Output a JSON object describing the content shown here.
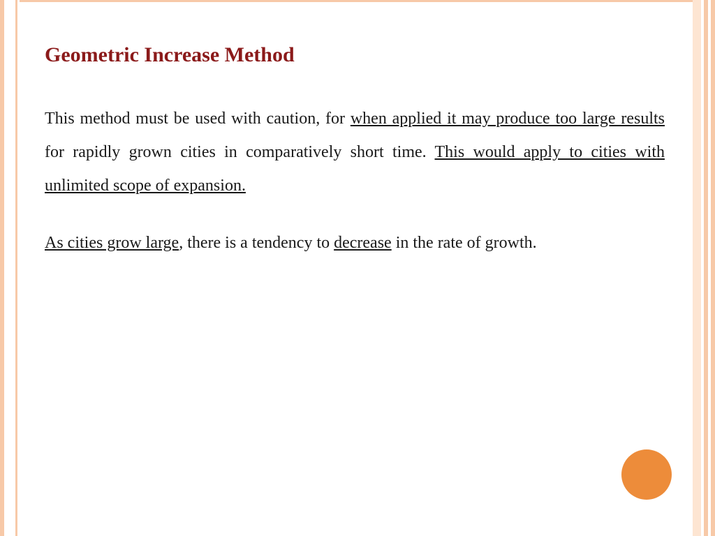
{
  "slide": {
    "title": "Geometric Increase Method",
    "title_color": "#8b1a1a",
    "body_color": "#1a1a1a",
    "p1": {
      "t1": "This method must be used with caution, for ",
      "u1": "when applied it may produce too large results",
      "t2": " for rapidly grown cities in comparatively short time. ",
      "u2": "This would apply to cities with unlimited scope of expansion."
    },
    "p2": {
      "u1": "As cities grow large",
      "t1": ", there is a tendency to ",
      "u2": "decrease",
      "t2": " in the rate of growth."
    }
  },
  "decor": {
    "circle_color": "#ed8c3a",
    "border_light": "#fde5d2",
    "border_mid": "#f7c9a8",
    "background": "#ffffff"
  },
  "typography": {
    "title_fontsize": 30,
    "body_fontsize": 24,
    "line_height": 2.0,
    "font_family": "Georgia, serif"
  }
}
